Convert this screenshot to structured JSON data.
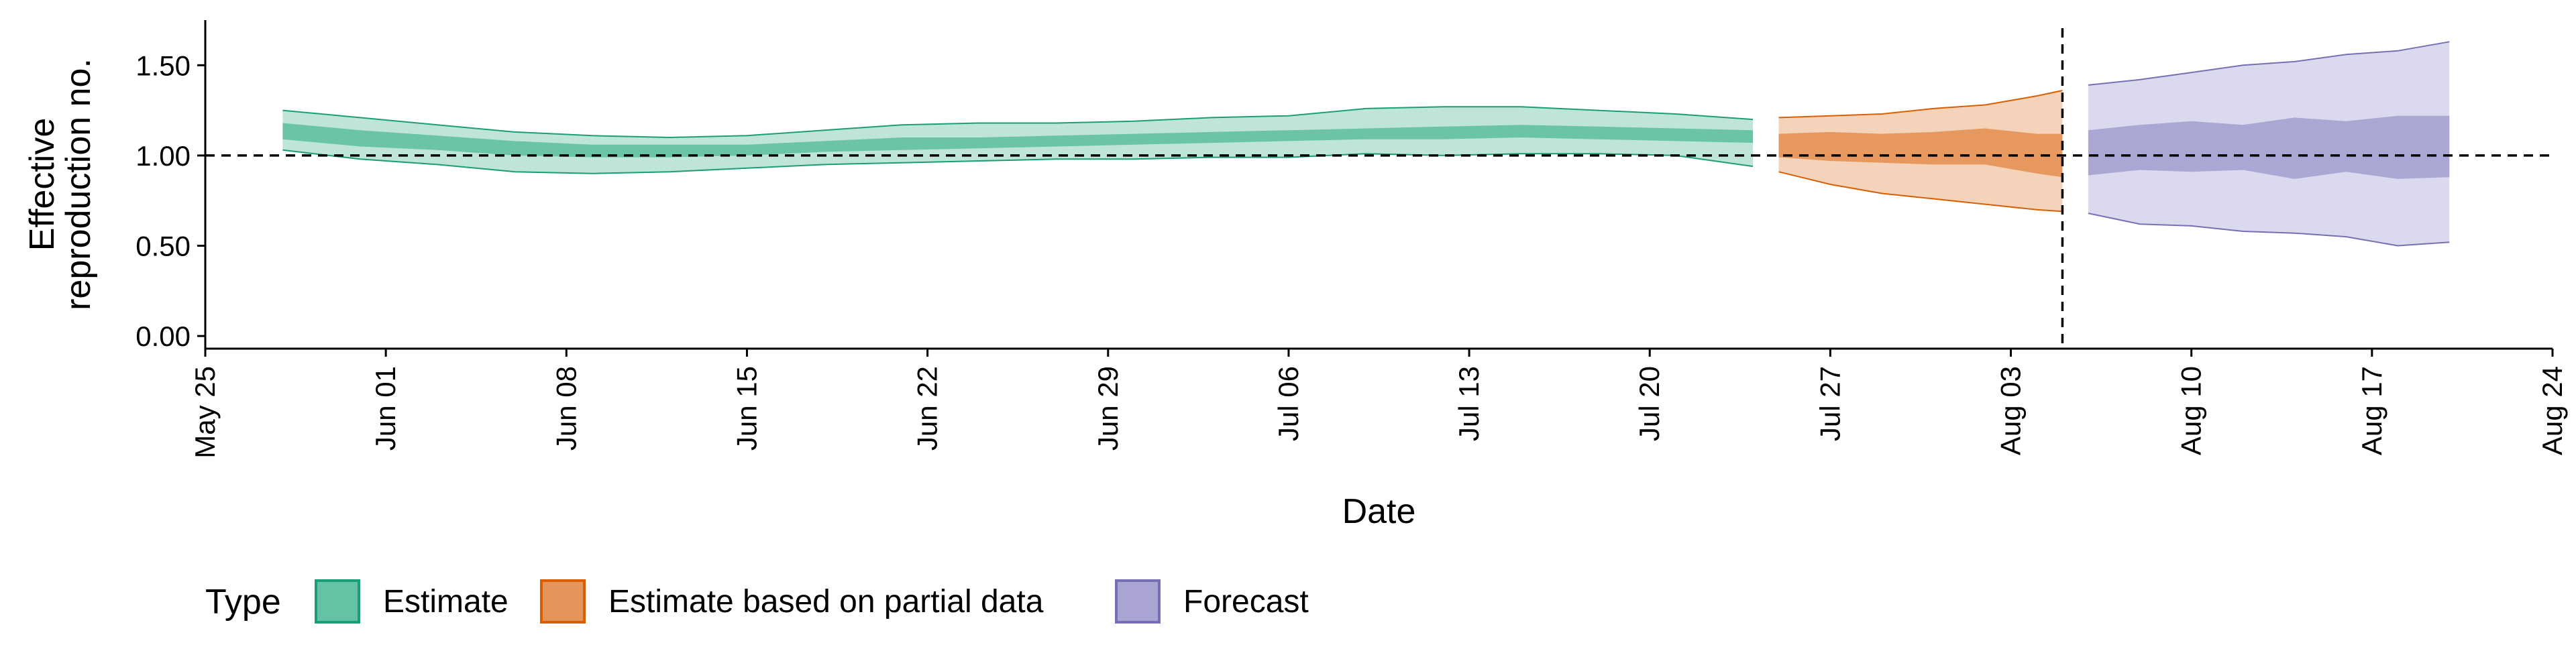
{
  "chart_data": {
    "type": "area",
    "ylabel_lines": [
      "Effective",
      "reproduction no."
    ],
    "xlabel": "Date",
    "y_ticks": [
      0.0,
      0.5,
      1.0,
      1.5
    ],
    "y_tick_labels": [
      "0.00",
      "0.50",
      "1.00",
      "1.50"
    ],
    "ylim": [
      -0.07,
      1.75
    ],
    "x_tick_dates": [
      "2020-05-25",
      "2020-06-01",
      "2020-06-08",
      "2020-06-15",
      "2020-06-22",
      "2020-06-29",
      "2020-07-06",
      "2020-07-13",
      "2020-07-20",
      "2020-07-27",
      "2020-08-03",
      "2020-08-10",
      "2020-08-17",
      "2020-08-24"
    ],
    "x_tick_labels": [
      "May 25",
      "Jun 01",
      "Jun 08",
      "Jun 15",
      "Jun 22",
      "Jun 29",
      "Jul 06",
      "Jul 13",
      "Jul 20",
      "Jul 27",
      "Aug 03",
      "Aug 10",
      "Aug 17",
      "Aug 24"
    ],
    "xlim": [
      "2020-05-25",
      "2020-08-24"
    ],
    "reference_line_y": 1.0,
    "vertical_line_date": "2020-08-05",
    "legend": {
      "title": "Type",
      "position": "bottom-left",
      "items": [
        {
          "label": "Estimate",
          "fill": "#66c2a5",
          "border": "#1b9e77"
        },
        {
          "label": "Estimate based on partial data",
          "fill": "#e6955a",
          "border": "#d95f02"
        },
        {
          "label": "Forecast",
          "fill": "#a9a4d3",
          "border": "#7570b3"
        }
      ]
    },
    "series": [
      {
        "name": "Estimate",
        "fill": "#66c2a5",
        "line": "#1b9e77",
        "x": [
          "2020-05-28",
          "2020-05-31",
          "2020-06-03",
          "2020-06-06",
          "2020-06-09",
          "2020-06-12",
          "2020-06-15",
          "2020-06-18",
          "2020-06-21",
          "2020-06-24",
          "2020-06-27",
          "2020-06-30",
          "2020-07-03",
          "2020-07-06",
          "2020-07-09",
          "2020-07-12",
          "2020-07-15",
          "2020-07-18",
          "2020-07-21",
          "2020-07-24"
        ],
        "lower90": [
          1.03,
          0.98,
          0.95,
          0.91,
          0.9,
          0.91,
          0.93,
          0.95,
          0.96,
          0.97,
          0.98,
          0.98,
          0.99,
          0.99,
          1.01,
          1.0,
          1.01,
          1.01,
          1.0,
          0.94
        ],
        "lower50": [
          1.09,
          1.05,
          1.03,
          1.0,
          0.99,
          0.99,
          1.0,
          1.02,
          1.03,
          1.04,
          1.05,
          1.06,
          1.07,
          1.08,
          1.09,
          1.09,
          1.1,
          1.09,
          1.08,
          1.07
        ],
        "upper50": [
          1.18,
          1.14,
          1.11,
          1.08,
          1.06,
          1.06,
          1.06,
          1.08,
          1.1,
          1.1,
          1.11,
          1.12,
          1.13,
          1.14,
          1.15,
          1.16,
          1.17,
          1.16,
          1.15,
          1.14
        ],
        "upper90": [
          1.25,
          1.21,
          1.17,
          1.13,
          1.11,
          1.1,
          1.11,
          1.14,
          1.17,
          1.18,
          1.18,
          1.19,
          1.21,
          1.22,
          1.26,
          1.27,
          1.27,
          1.25,
          1.23,
          1.2
        ]
      },
      {
        "name": "Estimate based on partial data",
        "fill": "#e6955a",
        "line": "#d95f02",
        "x": [
          "2020-07-25",
          "2020-07-27",
          "2020-07-29",
          "2020-07-31",
          "2020-08-02",
          "2020-08-04",
          "2020-08-05"
        ],
        "lower90": [
          0.91,
          0.84,
          0.79,
          0.76,
          0.73,
          0.7,
          0.69
        ],
        "lower50": [
          0.99,
          0.97,
          0.96,
          0.95,
          0.95,
          0.9,
          0.88
        ],
        "upper50": [
          1.12,
          1.13,
          1.12,
          1.13,
          1.15,
          1.12,
          1.12
        ],
        "upper90": [
          1.21,
          1.22,
          1.23,
          1.26,
          1.28,
          1.33,
          1.36
        ]
      },
      {
        "name": "Forecast",
        "fill": "#a9a4d3",
        "line": "#7570b3",
        "x": [
          "2020-08-06",
          "2020-08-08",
          "2020-08-10",
          "2020-08-12",
          "2020-08-14",
          "2020-08-16",
          "2020-08-18",
          "2020-08-20"
        ],
        "lower90": [
          0.68,
          0.62,
          0.61,
          0.58,
          0.57,
          0.55,
          0.5,
          0.52
        ],
        "lower50": [
          0.89,
          0.92,
          0.91,
          0.92,
          0.87,
          0.91,
          0.87,
          0.88
        ],
        "upper50": [
          1.14,
          1.17,
          1.19,
          1.17,
          1.21,
          1.19,
          1.22,
          1.22
        ],
        "upper90": [
          1.39,
          1.42,
          1.46,
          1.5,
          1.52,
          1.56,
          1.58,
          1.63
        ]
      }
    ]
  }
}
